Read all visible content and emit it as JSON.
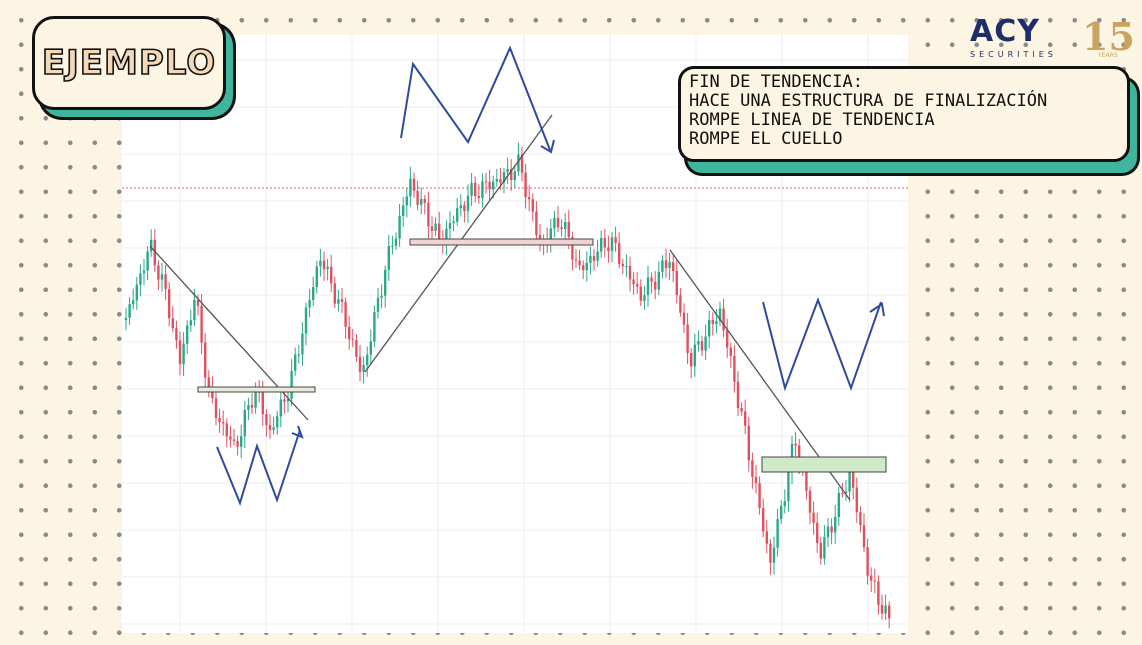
{
  "badge": "EJEMPLO",
  "note": {
    "title": "FIN DE TENDENCIA:",
    "lines": [
      "HACE UNA ESTRUCTURA DE FINALIZACIÓN",
      "ROMPE LINEA DE TENDENCIA",
      "ROMPE EL CUELLO"
    ]
  },
  "logo": {
    "brand": "ACY",
    "sub": "SECURITIES",
    "years": "15",
    "years_label": "YEARS"
  }
}
